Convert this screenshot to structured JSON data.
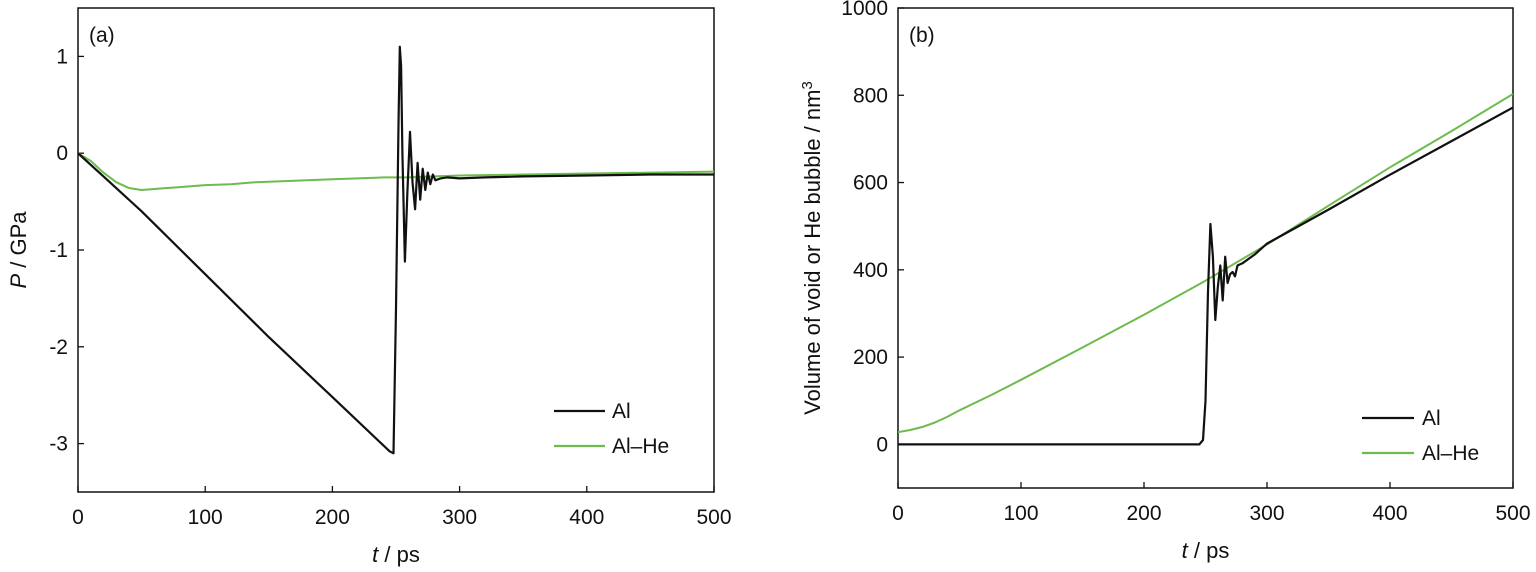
{
  "chart_data": [
    {
      "type": "line",
      "panel_label": "(a)",
      "xlabel": {
        "var": "t",
        "unit": " / ps"
      },
      "ylabel": {
        "var": "P",
        "unit": " / GPa"
      },
      "xlim": [
        0,
        500
      ],
      "ylim": [
        -3.5,
        1.5
      ],
      "xticks": [
        0,
        100,
        200,
        300,
        400,
        500
      ],
      "yticks": [
        -3,
        -2,
        -1,
        0,
        1
      ],
      "xtick_labels": [
        "0",
        "100",
        "200",
        "300",
        "400",
        "500"
      ],
      "ytick_labels": [
        "-3",
        "-2",
        "-1",
        "0",
        "1"
      ],
      "grid": false,
      "legend_position": "bottom-right",
      "series": [
        {
          "name": "Al",
          "color": "#111111",
          "x": [
            0,
            25,
            50,
            100,
            150,
            200,
            245,
            248,
            250,
            252,
            253,
            254,
            255,
            257,
            259,
            261,
            263,
            265,
            267,
            269,
            271,
            273,
            275,
            277,
            279,
            281,
            285,
            290,
            300,
            320,
            350,
            400,
            450,
            500
          ],
          "y": [
            0,
            -0.3,
            -0.6,
            -1.25,
            -1.9,
            -2.52,
            -3.08,
            -3.1,
            -1.6,
            0.3,
            1.1,
            0.9,
            0.0,
            -1.12,
            -0.4,
            0.22,
            -0.3,
            -0.58,
            -0.1,
            -0.48,
            -0.16,
            -0.38,
            -0.2,
            -0.32,
            -0.22,
            -0.28,
            -0.26,
            -0.25,
            -0.26,
            -0.25,
            -0.24,
            -0.23,
            -0.22,
            -0.22
          ]
        },
        {
          "name": "Al–He",
          "color": "#6dbb4e",
          "x": [
            0,
            10,
            20,
            30,
            40,
            50,
            60,
            70,
            80,
            90,
            100,
            120,
            140,
            160,
            180,
            200,
            220,
            240,
            260,
            280,
            300,
            350,
            400,
            450,
            500
          ],
          "y": [
            0,
            -0.08,
            -0.2,
            -0.3,
            -0.36,
            -0.38,
            -0.37,
            -0.36,
            -0.35,
            -0.34,
            -0.33,
            -0.32,
            -0.3,
            -0.29,
            -0.28,
            -0.27,
            -0.26,
            -0.25,
            -0.25,
            -0.24,
            -0.23,
            -0.22,
            -0.21,
            -0.2,
            -0.19
          ]
        }
      ]
    },
    {
      "type": "line",
      "panel_label": "(b)",
      "xlabel": {
        "var": "t",
        "unit": " / ps"
      },
      "ylabel": {
        "text": "Volume of void or He bubble / nm",
        "sup": "3"
      },
      "xlim": [
        0,
        500
      ],
      "ylim": [
        -100,
        1000
      ],
      "xticks": [
        0,
        100,
        200,
        300,
        400,
        500
      ],
      "yticks": [
        0,
        200,
        400,
        600,
        800,
        1000
      ],
      "xtick_labels": [
        "0",
        "100",
        "200",
        "300",
        "400",
        "500"
      ],
      "ytick_labels": [
        "0",
        "200",
        "400",
        "600",
        "800",
        "1000"
      ],
      "grid": false,
      "legend_position": "bottom-right",
      "series": [
        {
          "name": "Al",
          "color": "#111111",
          "x": [
            0,
            100,
            200,
            245,
            248,
            250,
            252,
            254,
            256,
            258,
            260,
            262,
            264,
            266,
            268,
            270,
            272,
            274,
            276,
            280,
            290,
            300,
            350,
            400,
            450,
            500
          ],
          "y": [
            0,
            0,
            0,
            0,
            10,
            100,
            350,
            505,
            430,
            285,
            360,
            410,
            330,
            430,
            370,
            390,
            395,
            385,
            410,
            415,
            435,
            460,
            538,
            618,
            695,
            772
          ]
        },
        {
          "name": "Al–He",
          "color": "#6dbb4e",
          "x": [
            0,
            10,
            20,
            30,
            40,
            50,
            75,
            100,
            150,
            200,
            250,
            300,
            350,
            400,
            450,
            500
          ],
          "y": [
            28,
            33,
            40,
            50,
            63,
            78,
            112,
            148,
            222,
            297,
            375,
            458,
            547,
            635,
            718,
            803
          ]
        }
      ]
    }
  ]
}
